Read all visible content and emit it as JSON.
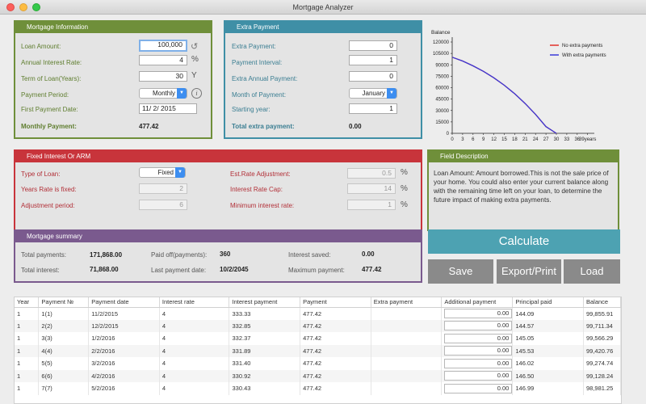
{
  "window": {
    "title": "Mortgage Analyzer"
  },
  "mortgage_info": {
    "title": "Mortgage Information",
    "loan_amount_label": "Loan Amount:",
    "loan_amount": "100,000",
    "rate_label": "Annual Interest Rate:",
    "rate": "4",
    "rate_unit": "%",
    "term_label": "Term of Loan(Years):",
    "term": "30",
    "term_unit": "Y",
    "period_label": "Payment Period:",
    "period": "Monthly",
    "first_payment_label": "First Payment Date:",
    "first_payment": "11/  2/ 2015",
    "monthly_label": "Monthly Payment:",
    "monthly": "477.42"
  },
  "extra_payment": {
    "title": "Extra Payment",
    "extra_label": "Extra Payment:",
    "extra": "0",
    "interval_label": "Payment Interval:",
    "interval": "1",
    "annual_label": "Extra Annual Payment:",
    "annual": "0",
    "month_label": "Month of Payment:",
    "month": "January",
    "start_label": "Starting year:",
    "start": "1",
    "total_label": "Total extra payment:",
    "total": "0.00"
  },
  "fixed_arm": {
    "title": "Fixed Interest Or ARM",
    "type_label": "Type of Loan:",
    "type": "Fixed",
    "years_fixed_label": "Years Rate is fixed:",
    "years_fixed": "2",
    "adj_period_label": "Adjustment period:",
    "adj_period": "6",
    "est_adj_label": "Est.Rate Adjustment:",
    "est_adj": "0.5",
    "cap_label": "Interest Rate Cap:",
    "cap": "14",
    "min_label": "Minimum interest rate:",
    "min": "1",
    "pct": "%"
  },
  "summary": {
    "title": "Mortgage summary",
    "total_payments_label": "Total payments:",
    "total_payments": "171,868.00",
    "paid_off_label": "Paid off(payments):",
    "paid_off": "360",
    "interest_saved_label": "Interest saved:",
    "interest_saved": "0.00",
    "total_interest_label": "Total interest:",
    "total_interest": "71,868.00",
    "last_date_label": "Last payment date:",
    "last_date": "10/2/2045",
    "max_payment_label": "Maximum payment:",
    "max_payment": "477.42"
  },
  "field_description": {
    "title": "Field Description",
    "text": "Loan Amount: Amount borrowed.This is not the sale price of your home.  You could also enter your current balance along with the remaining time left on your loan, to determine the future impact of making extra payments."
  },
  "buttons": {
    "calculate": "Calculate",
    "save": "Save",
    "export": "Export/Print",
    "load": "Load"
  },
  "chart_data": {
    "type": "line",
    "ylabel": "Balance",
    "xlabel": "years",
    "yticks": [
      "120000",
      "105000",
      "90000",
      "75000",
      "60000",
      "45000",
      "30000",
      "15000",
      "0"
    ],
    "xticks": [
      "0",
      "3",
      "6",
      "9",
      "12",
      "15",
      "18",
      "21",
      "24",
      "27",
      "30",
      "33",
      "36",
      "39"
    ],
    "xlim": [
      0,
      40
    ],
    "ylim": [
      0,
      120000
    ],
    "legend_position": "top-right",
    "series": [
      {
        "name": "No extra payments",
        "color": "#e0302a",
        "x": [
          0,
          3,
          6,
          9,
          12,
          15,
          18,
          21,
          24,
          27,
          30
        ],
        "y": [
          100000,
          95000,
          88700,
          81500,
          73000,
          63200,
          52000,
          39200,
          24800,
          8800,
          0
        ]
      },
      {
        "name": "With extra payments",
        "color": "#3a3ad8",
        "x": [
          0,
          3,
          6,
          9,
          12,
          15,
          18,
          21,
          24,
          27,
          30
        ],
        "y": [
          100000,
          95000,
          88700,
          81500,
          73000,
          63200,
          52000,
          39200,
          24800,
          8800,
          0
        ]
      }
    ]
  },
  "table": {
    "columns": [
      "Year",
      "Payment №",
      "Payment date",
      "Interest rate",
      "Interest payment",
      "Payment",
      "Extra payment",
      "Additional payment",
      "Principal paid",
      "Balance"
    ],
    "rows": [
      [
        "1",
        "1(1)",
        "11/2/2015",
        "4",
        "333.33",
        "477.42",
        "",
        "0.00",
        "144.09",
        "99,855.91"
      ],
      [
        "1",
        "2(2)",
        "12/2/2015",
        "4",
        "332.85",
        "477.42",
        "",
        "0.00",
        "144.57",
        "99,711.34"
      ],
      [
        "1",
        "3(3)",
        "1/2/2016",
        "4",
        "332.37",
        "477.42",
        "",
        "0.00",
        "145.05",
        "99,566.29"
      ],
      [
        "1",
        "4(4)",
        "2/2/2016",
        "4",
        "331.89",
        "477.42",
        "",
        "0.00",
        "145.53",
        "99,420.76"
      ],
      [
        "1",
        "5(5)",
        "3/2/2016",
        "4",
        "331.40",
        "477.42",
        "",
        "0.00",
        "146.02",
        "99,274.74"
      ],
      [
        "1",
        "6(6)",
        "4/2/2016",
        "4",
        "330.92",
        "477.42",
        "",
        "0.00",
        "146.50",
        "99,128.24"
      ],
      [
        "1",
        "7(7)",
        "5/2/2016",
        "4",
        "330.43",
        "477.42",
        "",
        "0.00",
        "146.99",
        "98,981.25"
      ]
    ]
  }
}
